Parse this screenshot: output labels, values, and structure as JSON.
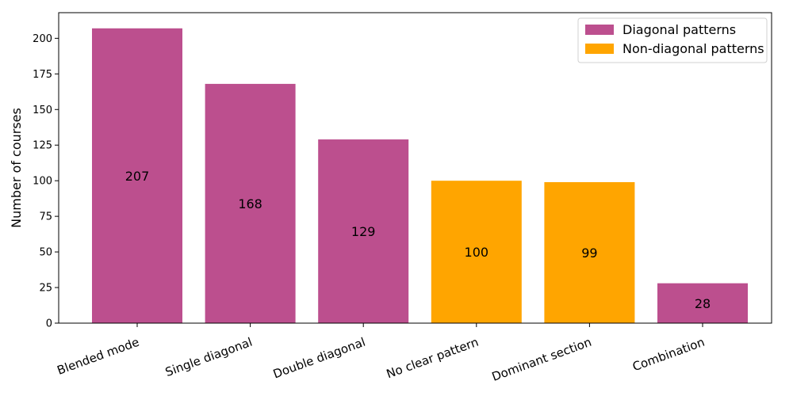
{
  "chart_data": {
    "type": "bar",
    "categories": [
      "Blended mode",
      "Single diagonal",
      "Double diagonal",
      "No clear pattern",
      "Dominant section",
      "Combination"
    ],
    "values": [
      207,
      168,
      129,
      100,
      99,
      28
    ],
    "groups": [
      "Diagonal patterns",
      "Diagonal patterns",
      "Diagonal patterns",
      "Non-diagonal patterns",
      "Non-diagonal patterns",
      "Diagonal patterns"
    ],
    "ylabel": "Number of courses",
    "xlabel": "",
    "title": "",
    "ylim": [
      0,
      218
    ],
    "yticks": [
      0,
      25,
      50,
      75,
      100,
      125,
      150,
      175,
      200
    ],
    "legend": {
      "placement": "top-right",
      "entries": [
        {
          "label": "Diagonal patterns",
          "color": "#bc4f8e"
        },
        {
          "label": "Non-diagonal patterns",
          "color": "#ffa500"
        }
      ]
    },
    "grid": false
  }
}
